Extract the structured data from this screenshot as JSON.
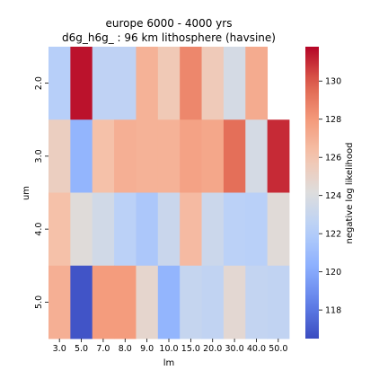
{
  "chart_data": {
    "type": "heatmap",
    "title": "europe 6000 - 4000 yrs",
    "subtitle": "d6g_h6g_ : 96 km lithosphere (havsine)",
    "xlabel": "lm",
    "ylabel": "um",
    "x_categories": [
      "3.0",
      "5.0",
      "7.0",
      "8.0",
      "9.0",
      "10.0",
      "15.0",
      "20.0",
      "30.0",
      "40.0",
      "50.0"
    ],
    "y_categories": [
      "2.0",
      "3.0",
      "4.0",
      "5.0"
    ],
    "values": [
      [
        122.2,
        131.5,
        122.6,
        122.6,
        126.9,
        125.7,
        128.6,
        125.6,
        123.7,
        127.2,
        null
      ],
      [
        125.3,
        120.6,
        126.2,
        127.0,
        126.9,
        126.9,
        127.6,
        127.4,
        129.4,
        123.7,
        131.0
      ],
      [
        126.2,
        124.3,
        123.5,
        122.4,
        121.7,
        123.1,
        126.5,
        123.2,
        122.4,
        122.3,
        124.4
      ],
      [
        127.0,
        116.8,
        127.9,
        127.9,
        124.8,
        120.6,
        122.9,
        122.7,
        124.6,
        122.8,
        122.7
      ]
    ],
    "colorbar": {
      "label": "negative log likelihood",
      "vmin": 116.5,
      "vmax": 131.8,
      "ticks": [
        118,
        120,
        122,
        124,
        126,
        128,
        130
      ],
      "colormap": "coolwarm"
    }
  }
}
